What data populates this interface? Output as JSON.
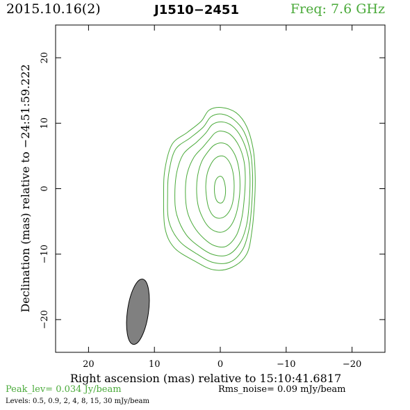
{
  "header": {
    "date": "2015.10.16(2)",
    "source": "J1510−2451",
    "freq": "Freq: 7.6 GHz"
  },
  "footer": {
    "peak": "Peak_lev=  0.034 Jy/beam",
    "rms": "Rms_noise= 0.09 mJy/beam",
    "levels": "Levels: 0.5, 0.9,   2,   4,   8,  15,  30 mJy/beam"
  },
  "colors": {
    "contour": "#4aaa3a",
    "beam_fill": "#808080",
    "text": "#000000"
  },
  "chart_data": {
    "type": "contour",
    "xlabel": "Right ascension (mas) relative to 15:10:41.6817",
    "ylabel": "Declination (mas) relative to −24:51:59.222",
    "xlim": [
      25,
      -25
    ],
    "ylim": [
      -25,
      25
    ],
    "xticks": [
      20,
      10,
      0,
      -10,
      -20
    ],
    "yticks": [
      20,
      10,
      0,
      -10,
      -20
    ],
    "xtick_labels": [
      "20",
      "10",
      "0",
      "−10",
      "−20"
    ],
    "ytick_labels": [
      "20",
      "10",
      "0",
      "−10",
      "−20"
    ],
    "levels_mJy_per_beam": [
      0.5,
      0.9,
      2,
      4,
      8,
      15,
      30
    ],
    "contours": [
      [
        [
          -0.2,
          12.4
        ],
        [
          -2.4,
          11.6
        ],
        [
          -4.0,
          9.5
        ],
        [
          -5.0,
          6.0
        ],
        [
          -5.3,
          2.0
        ],
        [
          -5.2,
          -2.0
        ],
        [
          -4.8,
          -6.5
        ],
        [
          -4.0,
          -10.0
        ],
        [
          -1.8,
          -12.0
        ],
        [
          1.0,
          -12.4
        ],
        [
          4.0,
          -11.0
        ],
        [
          7.0,
          -9.0
        ],
        [
          8.4,
          -6.0
        ],
        [
          8.6,
          -1.0
        ],
        [
          8.4,
          3.0
        ],
        [
          7.3,
          6.8
        ],
        [
          5.0,
          8.6
        ],
        [
          2.9,
          10.3
        ],
        [
          1.7,
          12.0
        ]
      ],
      [
        [
          -0.2,
          11.4
        ],
        [
          -2.0,
          10.6
        ],
        [
          -3.6,
          8.7
        ],
        [
          -4.6,
          5.5
        ],
        [
          -4.9,
          2.0
        ],
        [
          -4.8,
          -2.0
        ],
        [
          -4.4,
          -6.0
        ],
        [
          -3.4,
          -9.3
        ],
        [
          -1.5,
          -11.2
        ],
        [
          1.0,
          -11.3
        ],
        [
          3.5,
          -10.0
        ],
        [
          6.2,
          -8.0
        ],
        [
          7.8,
          -5.0
        ],
        [
          8.0,
          -1.0
        ],
        [
          7.8,
          2.5
        ],
        [
          6.8,
          6.0
        ],
        [
          4.5,
          7.8
        ],
        [
          2.6,
          9.4
        ],
        [
          1.4,
          11.0
        ]
      ],
      [
        [
          -0.2,
          10.2
        ],
        [
          -1.8,
          9.6
        ],
        [
          -3.2,
          7.8
        ],
        [
          -4.2,
          5.0
        ],
        [
          -4.5,
          2.0
        ],
        [
          -4.4,
          -2.0
        ],
        [
          -4.0,
          -5.5
        ],
        [
          -3.0,
          -8.3
        ],
        [
          -1.2,
          -10.1
        ],
        [
          1.0,
          -10.1
        ],
        [
          3.0,
          -9.0
        ],
        [
          5.2,
          -7.0
        ],
        [
          6.6,
          -4.0
        ],
        [
          6.9,
          -1.0
        ],
        [
          6.6,
          2.5
        ],
        [
          5.6,
          5.3
        ],
        [
          3.6,
          7.1
        ],
        [
          2.2,
          8.5
        ],
        [
          1.2,
          9.8
        ]
      ],
      [
        [
          -0.1,
          8.8
        ],
        [
          -1.5,
          8.3
        ],
        [
          -2.8,
          6.6
        ],
        [
          -3.6,
          4.2
        ],
        [
          -3.8,
          1.5
        ],
        [
          -3.6,
          -2.0
        ],
        [
          -3.2,
          -4.8
        ],
        [
          -2.4,
          -7.2
        ],
        [
          -0.9,
          -8.8
        ],
        [
          0.9,
          -8.7
        ],
        [
          2.5,
          -7.6
        ],
        [
          4.0,
          -5.8
        ],
        [
          5.0,
          -3.5
        ],
        [
          5.3,
          -0.5
        ],
        [
          5.0,
          2.4
        ],
        [
          4.0,
          4.8
        ],
        [
          2.6,
          6.4
        ],
        [
          1.6,
          7.6
        ],
        [
          0.8,
          8.5
        ]
      ],
      [
        [
          -0.1,
          7.0
        ],
        [
          -1.2,
          6.6
        ],
        [
          -2.2,
          5.2
        ],
        [
          -2.8,
          3.2
        ],
        [
          -3.0,
          0.5
        ],
        [
          -2.8,
          -2.0
        ],
        [
          -2.3,
          -4.2
        ],
        [
          -1.5,
          -5.8
        ],
        [
          -0.4,
          -6.6
        ],
        [
          0.8,
          -6.5
        ],
        [
          1.9,
          -5.7
        ],
        [
          2.8,
          -4.2
        ],
        [
          3.4,
          -2.4
        ],
        [
          3.6,
          0.0
        ],
        [
          3.4,
          2.2
        ],
        [
          2.8,
          4.2
        ],
        [
          1.9,
          5.6
        ],
        [
          1.0,
          6.6
        ]
      ],
      [
        [
          -0.1,
          5.0
        ],
        [
          -0.9,
          4.7
        ],
        [
          -1.6,
          3.6
        ],
        [
          -2.0,
          2.0
        ],
        [
          -2.1,
          0.0
        ],
        [
          -1.9,
          -2.0
        ],
        [
          -1.4,
          -3.4
        ],
        [
          -0.6,
          -4.3
        ],
        [
          0.4,
          -4.5
        ],
        [
          1.2,
          -4.0
        ],
        [
          1.8,
          -2.8
        ],
        [
          2.1,
          -1.2
        ],
        [
          2.2,
          0.4
        ],
        [
          2.0,
          2.2
        ],
        [
          1.5,
          3.6
        ],
        [
          0.8,
          4.6
        ]
      ],
      [
        [
          0.0,
          1.9
        ],
        [
          -0.4,
          1.6
        ],
        [
          -0.7,
          0.7
        ],
        [
          -0.8,
          -0.3
        ],
        [
          -0.7,
          -1.3
        ],
        [
          -0.4,
          -2.0
        ],
        [
          0.0,
          -2.2
        ],
        [
          0.5,
          -1.9
        ],
        [
          0.8,
          -1.1
        ],
        [
          0.9,
          -0.1
        ],
        [
          0.8,
          0.9
        ],
        [
          0.5,
          1.6
        ]
      ]
    ],
    "beam": {
      "x": 12.5,
      "y": -18.8,
      "major": 10.0,
      "minor": 3.2,
      "pa_deg": 8
    }
  }
}
